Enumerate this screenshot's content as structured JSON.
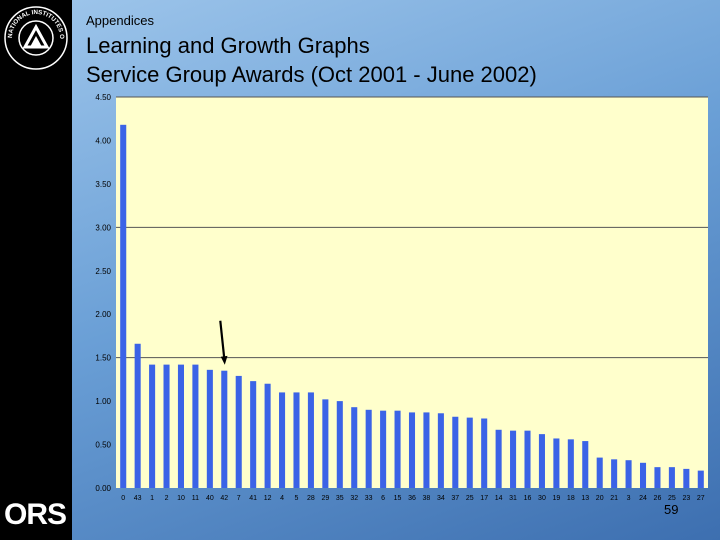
{
  "header": {
    "section": "Appendices",
    "title_line1": "Learning and Growth Graphs",
    "title_line2": "Service Group Awards (Oct 2001 - June 2002)"
  },
  "logos": {
    "seal_text": "NATIONAL INSTITUTES OF HEALTH",
    "ors": "ORS"
  },
  "footer": {
    "page_number": "59"
  },
  "colors": {
    "plot_bg": "#ffffcc",
    "bar": "#3b63e6",
    "grid": "#555555"
  },
  "chart_data": {
    "type": "bar",
    "ylim": [
      0,
      4.5
    ],
    "yticks": [
      "0.00",
      "0.50",
      "1.00",
      "1.50",
      "2.00",
      "2.50",
      "3.00",
      "3.50",
      "4.00",
      "4.50"
    ],
    "ytick_values": [
      0,
      0.5,
      1,
      1.5,
      2,
      2.5,
      3,
      3.5,
      4,
      4.5
    ],
    "gridlines": [
      1.5,
      3.0,
      4.5
    ],
    "annotation": {
      "type": "arrow",
      "target_category_index": 7
    },
    "categories": [
      "0",
      "43",
      "1",
      "2",
      "10",
      "11",
      "40",
      "42",
      "7",
      "41",
      "12",
      "4",
      "5",
      "28",
      "29",
      "35",
      "32",
      "33",
      "6",
      "15",
      "36",
      "38",
      "34",
      "37",
      "25",
      "17",
      "14",
      "31",
      "16",
      "30",
      "19",
      "18",
      "13",
      "20",
      "21",
      "3",
      "24",
      "26",
      "25",
      "23",
      "27"
    ],
    "values": [
      4.18,
      1.66,
      1.42,
      1.42,
      1.42,
      1.42,
      1.36,
      1.35,
      1.29,
      1.23,
      1.2,
      1.1,
      1.1,
      1.1,
      1.02,
      1.0,
      0.93,
      0.9,
      0.89,
      0.89,
      0.87,
      0.87,
      0.86,
      0.82,
      0.81,
      0.8,
      0.67,
      0.66,
      0.66,
      0.62,
      0.57,
      0.56,
      0.54,
      0.35,
      0.33,
      0.32,
      0.29,
      0.24,
      0.24,
      0.22,
      0.2
    ]
  }
}
